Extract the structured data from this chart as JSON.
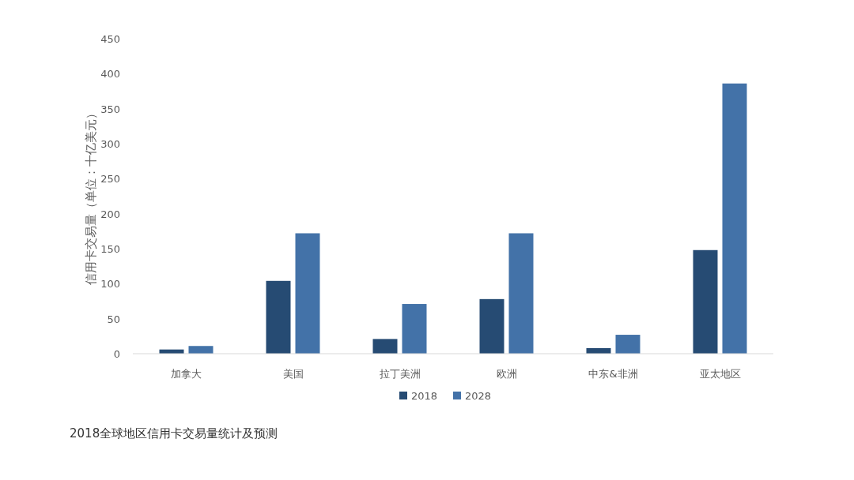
{
  "chart_data": {
    "type": "bar",
    "ylabel": "信用卡交易量（单位：十亿美元）",
    "categories": [
      "加拿大",
      "美国",
      "拉丁美洲",
      "欧洲",
      "中东&非洲",
      "亚太地区"
    ],
    "series": [
      {
        "name": "2018",
        "color": "#264b73",
        "values": [
          6,
          104,
          21,
          78,
          8,
          148
        ]
      },
      {
        "name": "2028",
        "color": "#4372a8",
        "values": [
          11,
          172,
          71,
          172,
          27,
          386
        ]
      }
    ],
    "ylim": [
      0,
      450
    ],
    "yticks": [
      0,
      50,
      100,
      150,
      200,
      250,
      300,
      350,
      400,
      450
    ],
    "legend": "bottom",
    "annotations": [
      "2018全球地区信用卡交易量统计及预测"
    ]
  }
}
